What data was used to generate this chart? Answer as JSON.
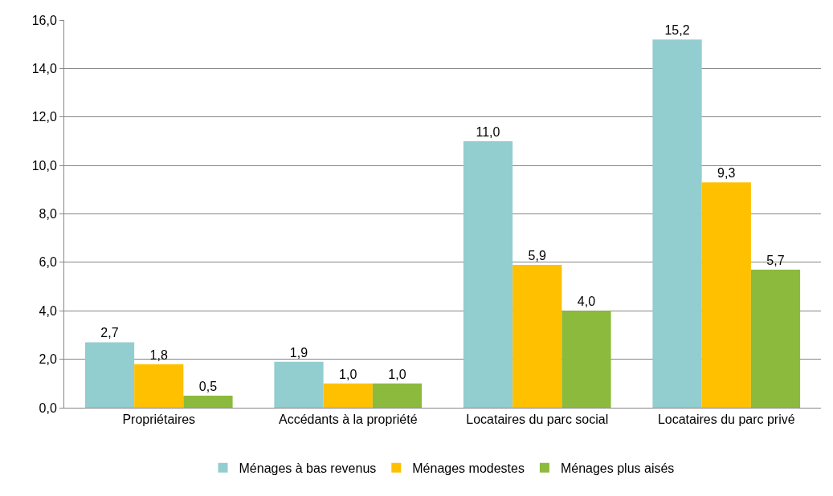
{
  "chart_data": {
    "type": "bar",
    "categories": [
      "Propriétaires",
      "Accédants à la propriété",
      "Locataires du parc social",
      "Locataires du parc privé"
    ],
    "series": [
      {
        "name": "Ménages à bas revenus",
        "color": "#92cdd0",
        "values": [
          2.7,
          1.9,
          11.0,
          15.2
        ],
        "value_labels": [
          "2,7",
          "1,9",
          "11,0",
          "15,2"
        ]
      },
      {
        "name": "Ménages modestes",
        "color": "#ffc000",
        "values": [
          1.8,
          1.0,
          5.9,
          9.3
        ],
        "value_labels": [
          "1,8",
          "1,0",
          "5,9",
          "9,3"
        ]
      },
      {
        "name": "Ménages plus aisés",
        "color": "#8cba3d",
        "values": [
          0.5,
          1.0,
          4.0,
          5.7
        ],
        "value_labels": [
          "0,5",
          "1,0",
          "4,0",
          "5,7"
        ]
      }
    ],
    "ylim": [
      0,
      16
    ],
    "yticks": [
      {
        "value": 0,
        "label": "0,0"
      },
      {
        "value": 2,
        "label": "2,0"
      },
      {
        "value": 4,
        "label": "4,0"
      },
      {
        "value": 6,
        "label": "6,0"
      },
      {
        "value": 8,
        "label": "8,0"
      },
      {
        "value": 10,
        "label": "10,0"
      },
      {
        "value": 12,
        "label": "12,0"
      },
      {
        "value": 14,
        "label": "14,0"
      },
      {
        "value": 16,
        "label": "16,0"
      }
    ],
    "grid": "y",
    "legend": "bottom"
  }
}
